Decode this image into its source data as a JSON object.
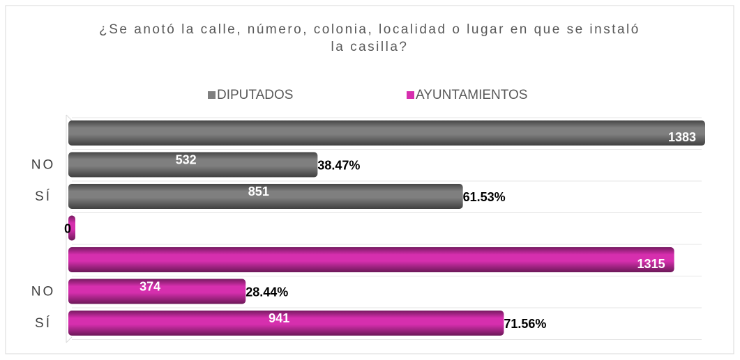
{
  "chart_data": {
    "type": "hbar",
    "title": "¿Se anotó la calle, número, colonia, localidad o lugar en que se instaló la casilla?",
    "categories": [
      null,
      "NO",
      "SÍ",
      null,
      null,
      "NO",
      "SÍ"
    ],
    "series": [
      {
        "name": "DIPUTADOS",
        "color": "#7f7f7f",
        "values": [
          1383,
          532,
          851,
          null,
          null,
          null,
          null
        ],
        "percents": [
          null,
          38.47,
          61.53,
          null,
          null,
          null,
          null
        ],
        "percent_labels": [
          null,
          "38.47%",
          "61.53%",
          null,
          null,
          null,
          null
        ]
      },
      {
        "name": "AYUNTAMIENTOS",
        "color": "#d62fae",
        "values": [
          null,
          null,
          null,
          0,
          1315,
          374,
          941
        ],
        "percents": [
          null,
          null,
          null,
          null,
          null,
          28.44,
          71.56
        ],
        "percent_labels": [
          null,
          null,
          null,
          null,
          null,
          "28.44%",
          "71.56%"
        ]
      }
    ],
    "xlim": [
      0,
      1383
    ],
    "legend": "top"
  }
}
